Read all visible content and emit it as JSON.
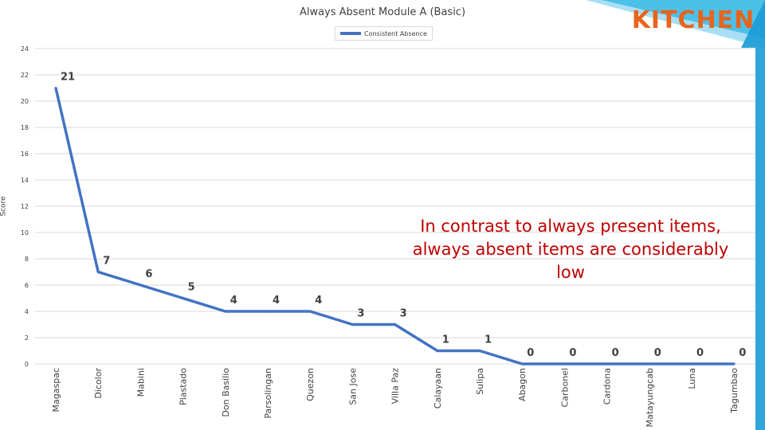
{
  "badge": {
    "label": "KITCHEN",
    "color": "#e8641c"
  },
  "chart_data": {
    "type": "line",
    "title": "Always Absent Module A (Basic)",
    "ylabel": "Score",
    "xlabel": "",
    "ylim": [
      0,
      24
    ],
    "yticks": [
      0,
      2,
      4,
      6,
      8,
      10,
      12,
      14,
      16,
      18,
      20,
      22,
      24
    ],
    "grid": true,
    "legend_position": "top-center",
    "categories": [
      "Magaspac",
      "Dicolor",
      "Mabini",
      "Plastado",
      "Don Basilio",
      "Parsolingan",
      "Quezon",
      "San Jose",
      "Villa Paz",
      "Calayaan",
      "Sulipa",
      "Abagon",
      "Carbonel",
      "Cardona",
      "Matayungcab",
      "Luna",
      "Tagumbao"
    ],
    "series": [
      {
        "name": "Consistent Absence",
        "color": "#4472c4",
        "values": [
          21,
          7,
          6,
          5,
          4,
          4,
          4,
          3,
          3,
          1,
          1,
          0,
          0,
          0,
          0,
          0,
          0
        ]
      }
    ],
    "annotation": "In contrast to always present items, always absent items are considerably low"
  }
}
